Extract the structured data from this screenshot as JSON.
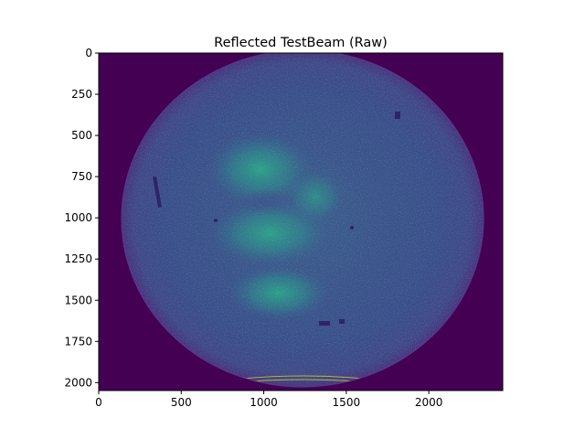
{
  "chart_data": {
    "type": "heatmap",
    "title": "Reflected TestBeam (Raw)",
    "xlabel": "",
    "ylabel": "",
    "xlim": [
      0,
      2448
    ],
    "ylim": [
      2048,
      0
    ],
    "x_ticks": [
      0,
      500,
      1000,
      1500,
      2000
    ],
    "y_ticks": [
      0,
      250,
      500,
      750,
      1000,
      1250,
      1500,
      1750,
      2000
    ],
    "colormap": "viridis",
    "colors": {
      "background": "#440154",
      "disk": "#3b4f8a",
      "bright": "#2fa384",
      "edge": "#46337e",
      "fringe": "#d8e219"
    },
    "grid": false,
    "legend": "none"
  }
}
